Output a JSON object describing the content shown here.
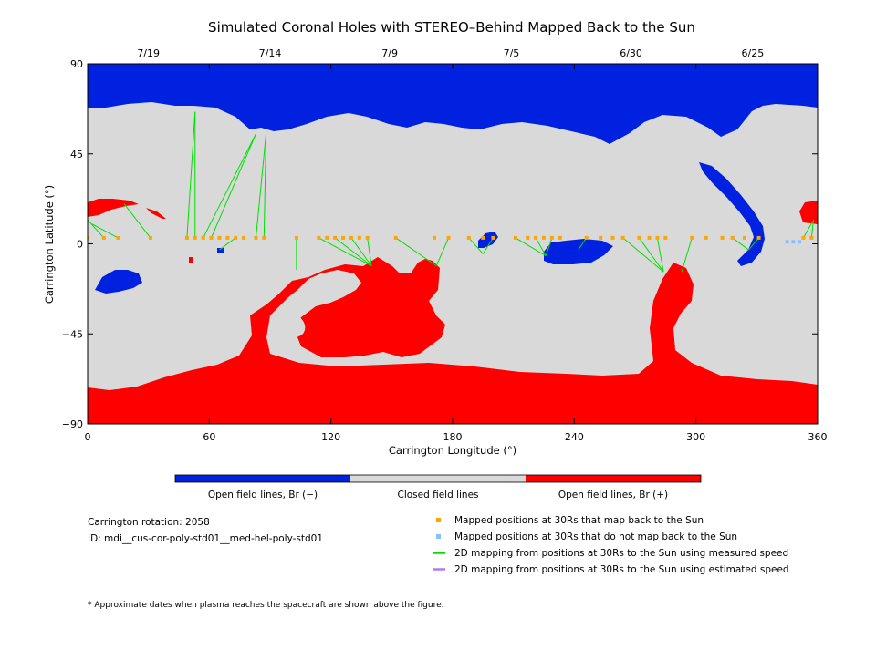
{
  "chart_data": {
    "type": "map",
    "title": "Simulated Coronal Holes with STEREO–Behind Mapped Back to the Sun",
    "xlabel": "Carrington Longitude (°)",
    "ylabel": "Carrington Latitude (°)",
    "xlim": [
      0,
      360
    ],
    "ylim": [
      -90,
      90
    ],
    "x_ticks": [
      0,
      60,
      120,
      180,
      240,
      300,
      360
    ],
    "y_ticks": [
      -90,
      -45,
      0,
      45,
      90
    ],
    "y_tick_labels": [
      "−90",
      "−45",
      "0",
      "45",
      "90"
    ],
    "top_date_ticks": [
      {
        "label": "7/19",
        "lon": 30
      },
      {
        "label": "7/14",
        "lon": 90
      },
      {
        "label": "7/9",
        "lon": 149
      },
      {
        "label": "7/5",
        "lon": 209
      },
      {
        "label": "6/30",
        "lon": 268
      },
      {
        "label": "6/25",
        "lon": 328
      }
    ],
    "colors": {
      "open_negative": "#0022e0",
      "closed": "#d9d9d9",
      "open_positive": "#ff0000",
      "mapped_point": "#ffa500",
      "unmapped_point": "#87bfff",
      "measured_line": "#00e000",
      "estimated_line": "#b07ee8"
    },
    "colorbar": [
      {
        "label": "Open field lines, Br (−)",
        "color": "#0022e0"
      },
      {
        "label": "Closed field lines",
        "color": "#d9d9d9"
      },
      {
        "label": "Open field lines, Br (+)",
        "color": "#ff0000"
      }
    ],
    "mapped_points": [
      [
        0,
        3
      ],
      [
        8,
        3
      ],
      [
        15,
        3
      ],
      [
        31,
        3
      ],
      [
        49,
        3
      ],
      [
        53,
        3
      ],
      [
        57,
        3
      ],
      [
        61,
        3
      ],
      [
        65,
        3
      ],
      [
        69,
        3
      ],
      [
        73,
        3
      ],
      [
        77,
        3
      ],
      [
        83,
        3
      ],
      [
        87,
        3
      ],
      [
        103,
        3
      ],
      [
        114,
        3
      ],
      [
        118,
        3
      ],
      [
        122,
        3
      ],
      [
        126,
        3
      ],
      [
        130,
        3
      ],
      [
        134,
        3
      ],
      [
        138,
        3
      ],
      [
        152,
        3
      ],
      [
        171,
        3
      ],
      [
        178,
        3
      ],
      [
        188,
        3
      ],
      [
        195,
        3
      ],
      [
        200,
        3
      ],
      [
        211,
        3
      ],
      [
        217,
        3
      ],
      [
        221,
        3
      ],
      [
        225,
        3
      ],
      [
        229,
        3
      ],
      [
        233,
        3
      ],
      [
        246,
        3
      ],
      [
        253,
        3
      ],
      [
        259,
        3
      ],
      [
        264,
        3
      ],
      [
        272,
        3
      ],
      [
        277,
        3
      ],
      [
        281,
        3
      ],
      [
        285,
        3
      ],
      [
        298,
        3
      ],
      [
        305,
        3
      ],
      [
        313,
        3
      ],
      [
        318,
        3
      ],
      [
        324,
        3
      ],
      [
        331,
        3
      ],
      [
        353,
        3
      ],
      [
        357,
        3
      ]
    ],
    "unmapped_points": [
      [
        345,
        1
      ],
      [
        348,
        1
      ],
      [
        351,
        1
      ]
    ],
    "measured_mapping_lines": [
      [
        [
          0,
          12
        ],
        [
          8,
          3
        ]
      ],
      [
        [
          2,
          10
        ],
        [
          15,
          3
        ]
      ],
      [
        [
          18,
          20
        ],
        [
          31,
          3
        ]
      ],
      [
        [
          53,
          66
        ],
        [
          53,
          3
        ]
      ],
      [
        [
          53,
          66
        ],
        [
          49,
          3
        ]
      ],
      [
        [
          83,
          55
        ],
        [
          61,
          3
        ]
      ],
      [
        [
          83,
          55
        ],
        [
          57,
          3
        ]
      ],
      [
        [
          88,
          55
        ],
        [
          83,
          3
        ]
      ],
      [
        [
          88,
          55
        ],
        [
          87,
          3
        ]
      ],
      [
        [
          65,
          -3
        ],
        [
          73,
          3
        ]
      ],
      [
        [
          103,
          -13
        ],
        [
          103,
          3
        ]
      ],
      [
        [
          140,
          -11
        ],
        [
          114,
          3
        ]
      ],
      [
        [
          140,
          -11
        ],
        [
          122,
          3
        ]
      ],
      [
        [
          140,
          -11
        ],
        [
          130,
          3
        ]
      ],
      [
        [
          140,
          -11
        ],
        [
          138,
          3
        ]
      ],
      [
        [
          172,
          -11
        ],
        [
          152,
          3
        ]
      ],
      [
        [
          172,
          -11
        ],
        [
          178,
          3
        ]
      ],
      [
        [
          195,
          -5
        ],
        [
          188,
          3
        ]
      ],
      [
        [
          195,
          -5
        ],
        [
          200,
          3
        ]
      ],
      [
        [
          226,
          -6
        ],
        [
          211,
          3
        ]
      ],
      [
        [
          226,
          -6
        ],
        [
          221,
          3
        ]
      ],
      [
        [
          226,
          -6
        ],
        [
          229,
          3
        ]
      ],
      [
        [
          242,
          -3
        ],
        [
          246,
          3
        ]
      ],
      [
        [
          284,
          -14
        ],
        [
          264,
          3
        ]
      ],
      [
        [
          284,
          -14
        ],
        [
          272,
          3
        ]
      ],
      [
        [
          284,
          -14
        ],
        [
          281,
          3
        ]
      ],
      [
        [
          293,
          -14
        ],
        [
          298,
          3
        ]
      ],
      [
        [
          326,
          -3
        ],
        [
          318,
          3
        ]
      ],
      [
        [
          326,
          -3
        ],
        [
          331,
          3
        ]
      ],
      [
        [
          358,
          12
        ],
        [
          353,
          3
        ]
      ],
      [
        [
          358,
          12
        ],
        [
          357,
          3
        ]
      ]
    ],
    "carrington_rotation": "Carrington rotation: 2058",
    "model_id": "ID: mdi__cus-cor-poly-std01__med-hel-poly-std01",
    "legend": [
      {
        "marker": "square",
        "color": "#ffa500",
        "label": "Mapped positions at 30Rs that map back to the Sun"
      },
      {
        "marker": "square",
        "color": "#87bfff",
        "label": "Mapped positions at 30Rs that do not map back to the Sun"
      },
      {
        "marker": "line",
        "color": "#00e000",
        "label": "2D mapping from positions at 30Rs to the Sun using measured speed"
      },
      {
        "marker": "line",
        "color": "#b07ee8",
        "label": "2D mapping from positions at 30Rs to the Sun using estimated speed"
      }
    ],
    "footnote": "* Approximate dates when plasma reaches the spacecraft are shown above the figure."
  }
}
